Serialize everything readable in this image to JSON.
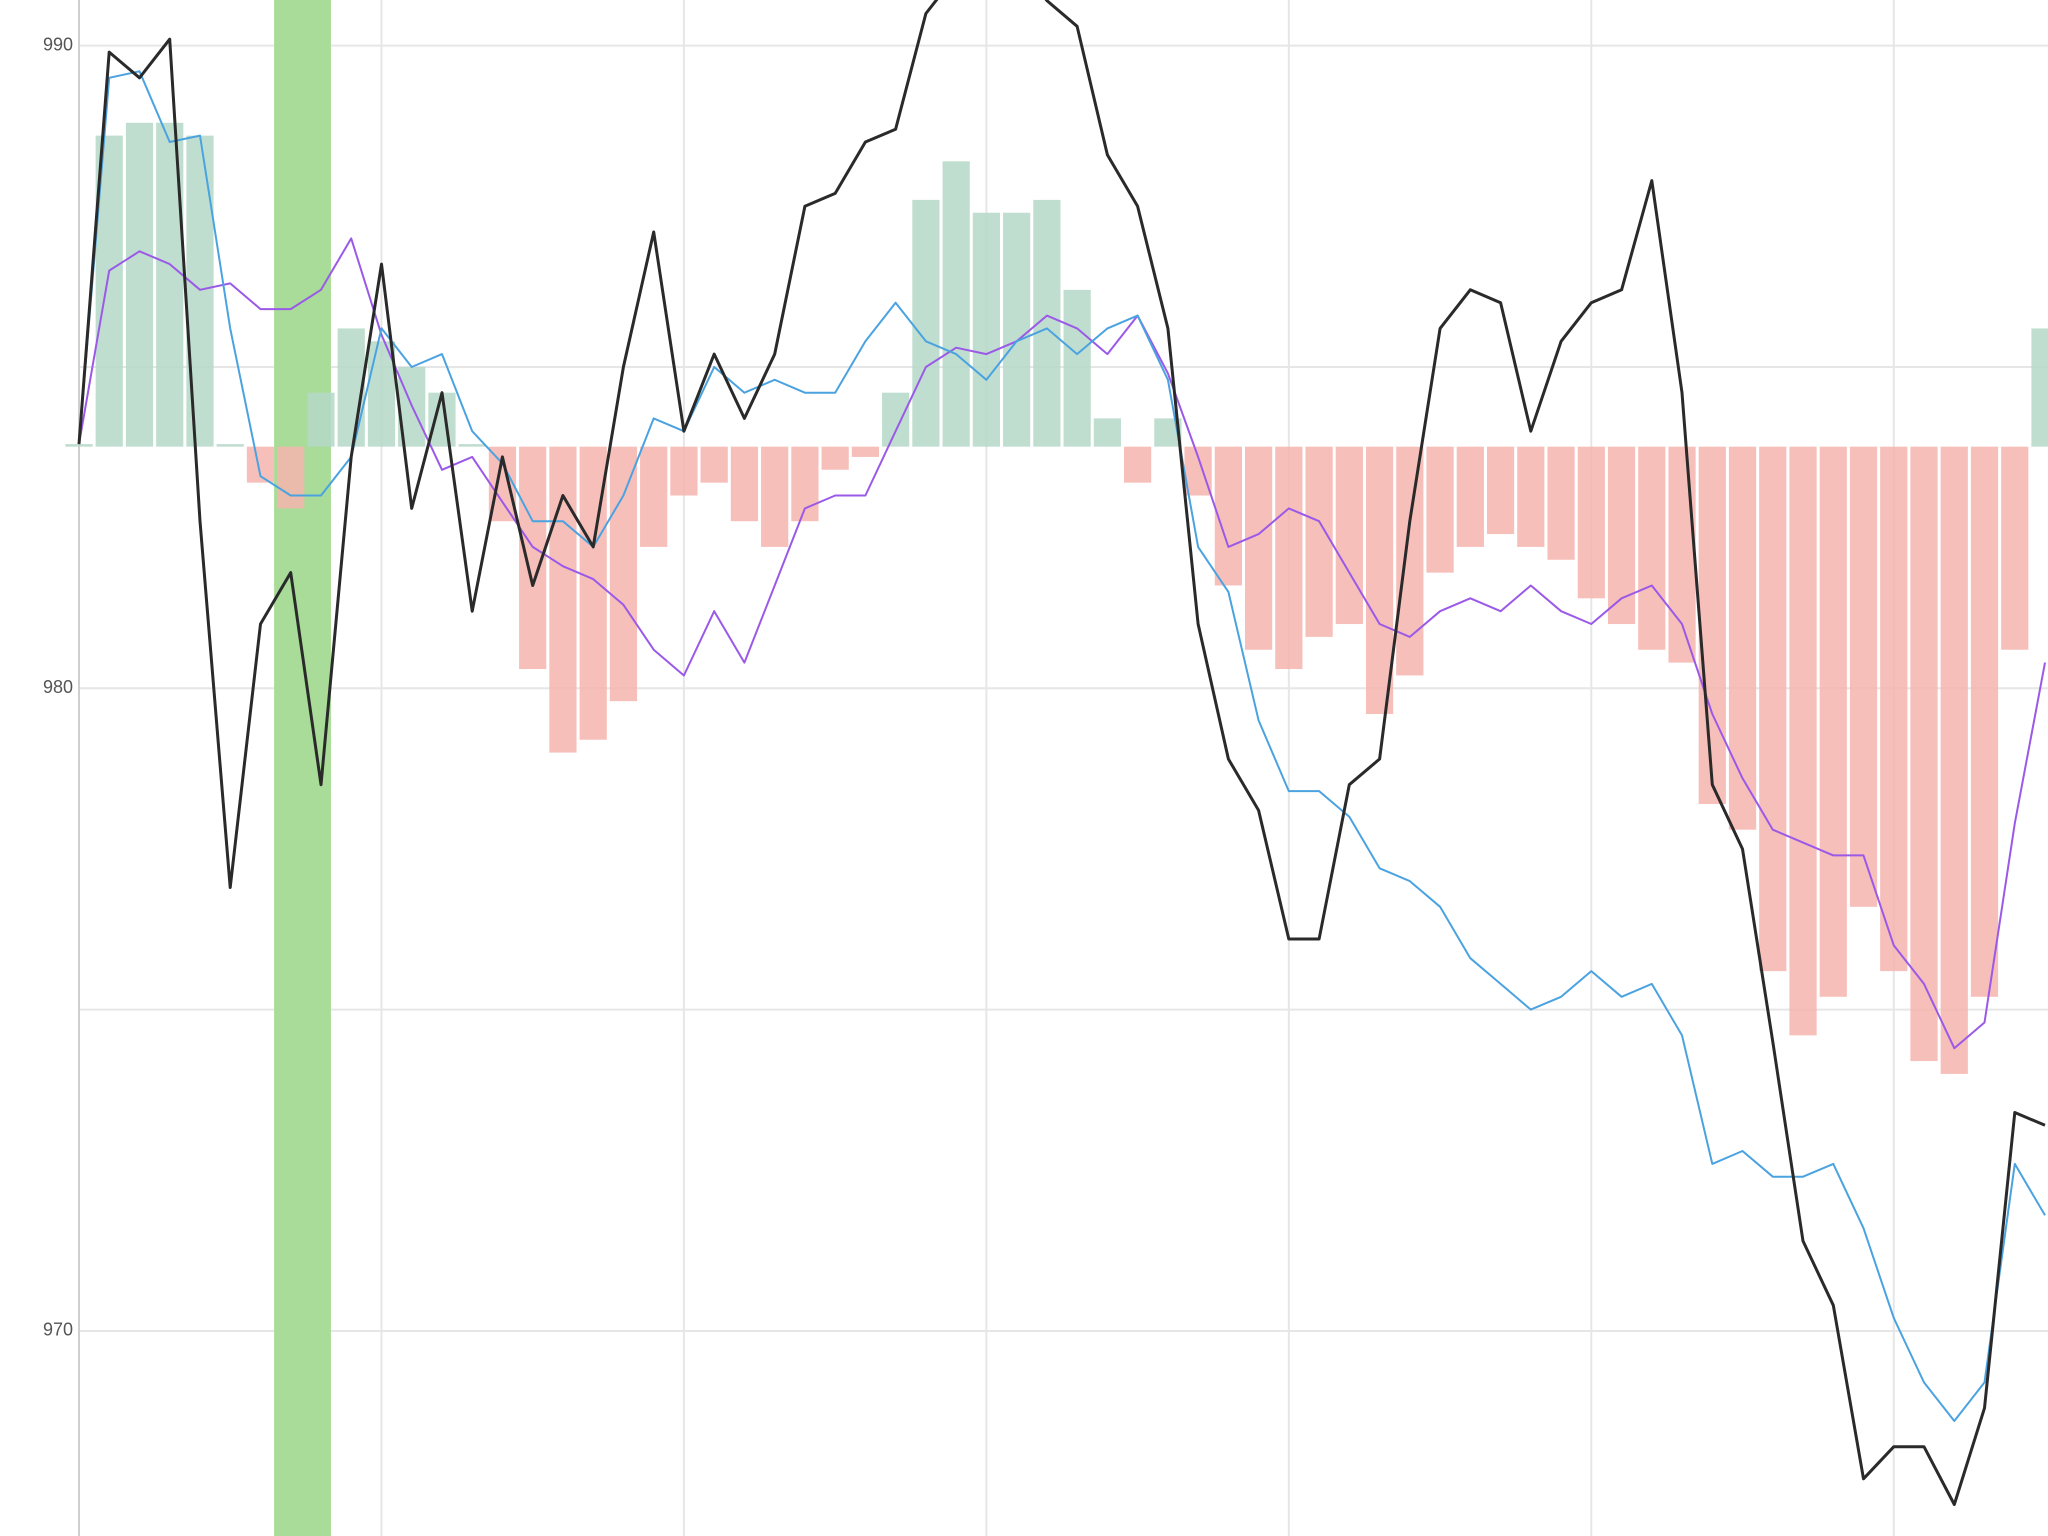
{
  "chart_data": {
    "type": "line",
    "xlim": [
      0,
      65
    ],
    "xticks": [
      0,
      10,
      20,
      30,
      40,
      50,
      60
    ],
    "ylim": [
      966.81,
      990.71
    ],
    "yticks": [
      970,
      980,
      990
    ],
    "yminor": [
      975,
      985
    ],
    "grid": true,
    "x": [
      0,
      1,
      2,
      3,
      4,
      5,
      6,
      7,
      8,
      9,
      10,
      11,
      12,
      13,
      14,
      15,
      16,
      17,
      18,
      19,
      20,
      21,
      22,
      23,
      24,
      25,
      26,
      27,
      28,
      29,
      30,
      31,
      32,
      33,
      34,
      35,
      36,
      37,
      38,
      39,
      40,
      41,
      42,
      43,
      44,
      45,
      46,
      47,
      48,
      49,
      50,
      51,
      52,
      53,
      54,
      55,
      56,
      57,
      58,
      59,
      60,
      61,
      62,
      63,
      64,
      65
    ],
    "highlight": {
      "from": 6.45,
      "to": 8.33,
      "color": "#a8dc98"
    },
    "histogram": {
      "base": 983.76,
      "up_color": "#b5d8c8",
      "down_color": "#f6b4ae",
      "values": [
        983.8,
        988.6,
        988.8,
        988.8,
        988.6,
        983.8,
        983.2,
        982.8,
        984.6,
        985.6,
        985.4,
        985.0,
        984.6,
        983.8,
        982.6,
        980.3,
        979.0,
        979.2,
        979.8,
        982.2,
        983.0,
        983.2,
        982.6,
        982.2,
        982.6,
        983.4,
        983.6,
        984.6,
        987.6,
        988.2,
        987.4,
        987.4,
        987.6,
        986.2,
        984.2,
        983.2,
        984.2,
        983.0,
        981.6,
        980.6,
        980.3,
        980.8,
        981.0,
        979.6,
        980.2,
        981.8,
        982.2,
        982.4,
        982.2,
        982.0,
        981.4,
        981.0,
        980.6,
        980.4,
        978.2,
        977.8,
        975.6,
        974.6,
        975.2,
        976.6,
        975.6,
        974.2,
        974.0,
        975.2,
        980.6,
        985.6
      ]
    },
    "series": [
      {
        "color": "#9b59e8",
        "width": 2,
        "values": [
          983.8,
          986.5,
          986.8,
          986.6,
          986.2,
          986.3,
          985.9,
          985.9,
          986.2,
          987.0,
          985.5,
          984.4,
          983.4,
          983.6,
          982.9,
          982.2,
          981.9,
          981.7,
          981.3,
          980.6,
          980.2,
          981.2,
          980.4,
          981.6,
          982.8,
          983.0,
          983.0,
          984.0,
          985.0,
          985.3,
          985.2,
          985.4,
          985.8,
          985.6,
          985.2,
          985.8,
          984.9,
          983.6,
          982.2,
          982.4,
          982.8,
          982.6,
          981.8,
          981.0,
          980.8,
          981.2,
          981.4,
          981.2,
          981.6,
          981.2,
          981.0,
          981.4,
          981.6,
          981.0,
          979.6,
          978.6,
          977.8,
          977.6,
          977.4,
          977.4,
          976.0,
          975.4,
          974.4,
          974.8,
          977.9,
          980.4
        ]
      },
      {
        "color": "#4aa3e0",
        "width": 2,
        "values": [
          983.8,
          989.5,
          989.6,
          988.5,
          988.6,
          985.6,
          983.3,
          983.0,
          983.0,
          983.6,
          985.6,
          985.0,
          985.2,
          984.0,
          983.5,
          982.6,
          982.6,
          982.2,
          983.0,
          984.2,
          984.0,
          985.0,
          984.6,
          984.8,
          984.6,
          984.6,
          985.4,
          986.0,
          985.4,
          985.2,
          984.8,
          985.4,
          985.6,
          985.2,
          985.6,
          985.8,
          984.8,
          982.2,
          981.5,
          979.5,
          978.4,
          978.4,
          978.0,
          977.2,
          977.0,
          976.6,
          975.8,
          975.4,
          975.0,
          975.2,
          975.6,
          975.2,
          975.4,
          974.6,
          972.6,
          972.8,
          972.4,
          972.4,
          972.6,
          971.6,
          970.2,
          969.2,
          968.6,
          969.2,
          972.6,
          971.8
        ]
      },
      {
        "color": "#2a2a2a",
        "width": 3,
        "values": [
          983.8,
          989.9,
          989.5,
          990.1,
          982.6,
          976.9,
          981.0,
          981.8,
          978.5,
          983.6,
          986.6,
          982.8,
          984.6,
          981.2,
          983.6,
          981.6,
          983.0,
          982.2,
          985.0,
          987.1,
          984.0,
          985.2,
          984.2,
          985.2,
          987.5,
          987.7,
          988.5,
          988.7,
          990.5,
          991.1,
          990.9,
          991.3,
          990.7,
          990.3,
          988.3,
          987.5,
          985.6,
          981.0,
          978.9,
          978.1,
          976.1,
          976.1,
          978.5,
          978.9,
          982.6,
          985.6,
          986.2,
          986.0,
          984.0,
          985.4,
          986.0,
          986.2,
          987.9,
          984.6,
          978.5,
          977.5,
          974.5,
          971.4,
          970.4,
          967.7,
          968.2,
          968.2,
          967.3,
          968.8,
          973.4,
          973.2
        ]
      }
    ]
  }
}
